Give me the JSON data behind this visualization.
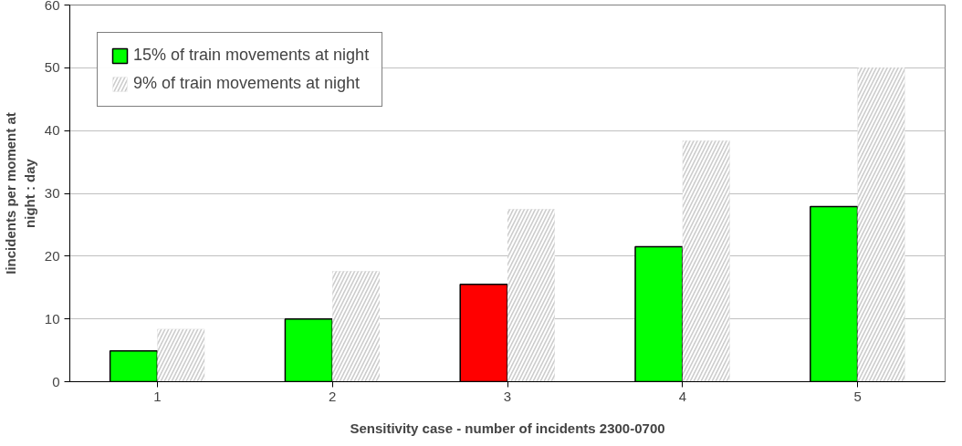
{
  "chart_data": {
    "type": "bar",
    "xlabel": "Sensitivity case - number of incidents 2300-0700",
    "ylabel": "Iincidents per moment at\nnight : day",
    "categories": [
      "1",
      "2",
      "3",
      "4",
      "5"
    ],
    "series": [
      {
        "name": "15% of train movements at night",
        "color": "#00ff00",
        "colors": [
          null,
          null,
          "#ff0000",
          null,
          null
        ],
        "values": [
          4.9,
          10,
          15.5,
          21.5,
          27.9
        ]
      },
      {
        "name": "9% of train movements at night",
        "color": "#cccccc",
        "values": [
          8.4,
          17.6,
          27.5,
          38.4,
          50
        ]
      }
    ],
    "ylim": [
      0,
      60
    ],
    "yticks": [
      0,
      10,
      20,
      30,
      40,
      50,
      60
    ],
    "grid": "y",
    "legend": "top left"
  }
}
